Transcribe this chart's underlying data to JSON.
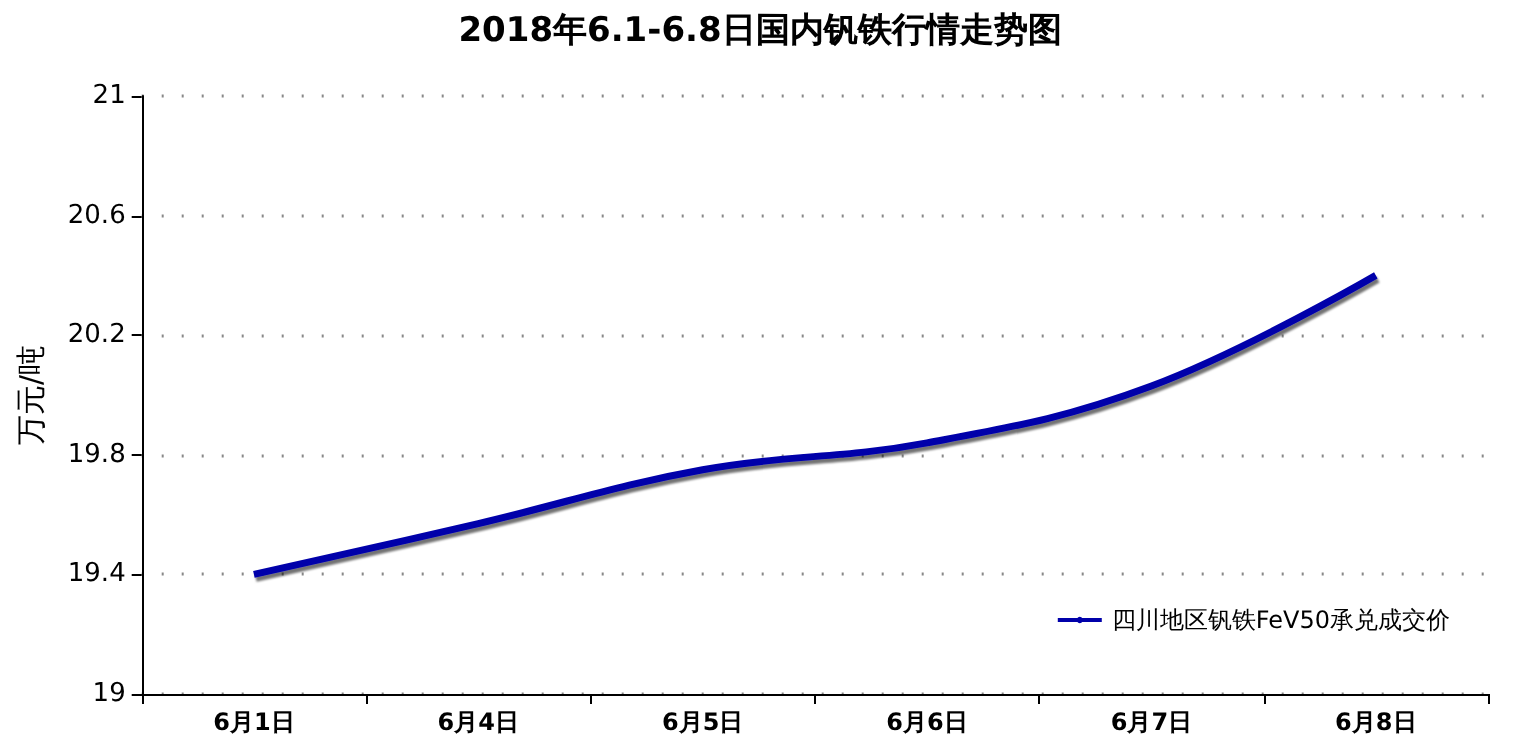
{
  "chart_data": {
    "type": "line",
    "title": "2018年6.1-6.8日国内钒铁行情走势图",
    "ylabel": "万元/吨",
    "categories": [
      "6月1日",
      "6月4日",
      "6月5日",
      "6月6日",
      "6月7日",
      "6月8日"
    ],
    "series": [
      {
        "name": "四川地区钒铁FeV50承兑成交价",
        "color": "#0000aa",
        "values": [
          19.4,
          19.57,
          19.75,
          19.84,
          20.03,
          20.4
        ]
      }
    ],
    "ylim": [
      19,
      21
    ],
    "yticks": [
      19,
      19.4,
      19.8,
      20.2,
      20.6,
      21
    ],
    "grid": "y",
    "legend": "bottom right",
    "marker": "none",
    "line_style": "solid"
  }
}
